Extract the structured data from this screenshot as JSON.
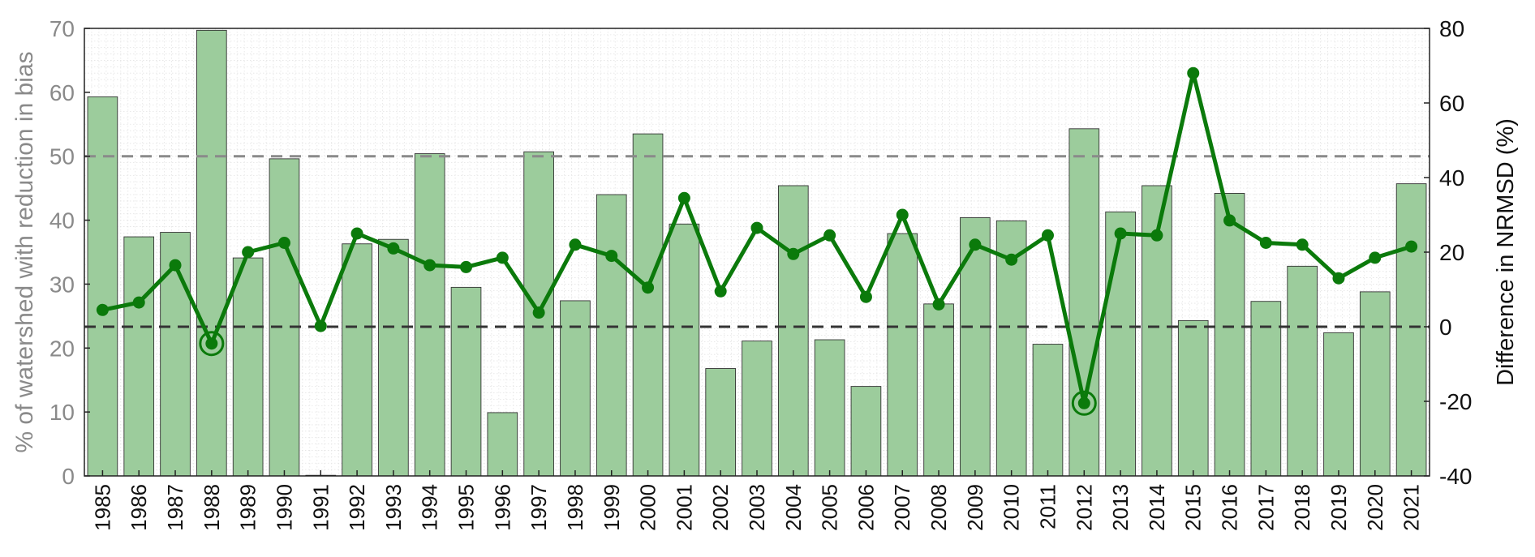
{
  "chart_data": {
    "type": "bar",
    "categories": [
      "1985",
      "1986",
      "1987",
      "1988",
      "1989",
      "1990",
      "1991",
      "1992",
      "1993",
      "1994",
      "1995",
      "1996",
      "1997",
      "1998",
      "1999",
      "2000",
      "2001",
      "2002",
      "2003",
      "2004",
      "2005",
      "2006",
      "2007",
      "2008",
      "2009",
      "2010",
      "2011",
      "2012",
      "2013",
      "2014",
      "2015",
      "2016",
      "2017",
      "2018",
      "2019",
      "2020",
      "2021"
    ],
    "series": [
      {
        "type": "bar",
        "axis": "left",
        "color": "#9ccc9c",
        "values": [
          59.3,
          37.4,
          38.1,
          69.7,
          34.1,
          49.6,
          0.1,
          36.3,
          37.0,
          50.4,
          29.5,
          9.9,
          50.7,
          27.4,
          44.0,
          53.5,
          39.4,
          16.8,
          21.1,
          45.4,
          21.3,
          14.0,
          37.9,
          26.9,
          40.4,
          39.9,
          20.6,
          54.3,
          41.3,
          45.4,
          24.3,
          44.2,
          27.3,
          32.8,
          22.4,
          28.8,
          45.7
        ]
      },
      {
        "type": "line",
        "axis": "right",
        "color": "#0b7a0b",
        "values": [
          4.5,
          6.5,
          16.5,
          -4.5,
          20.0,
          22.5,
          0.2,
          25.0,
          21.0,
          16.5,
          16.0,
          18.5,
          3.8,
          22.0,
          19.0,
          10.5,
          34.5,
          9.5,
          26.5,
          19.5,
          24.5,
          8.0,
          30.0,
          6.0,
          22.0,
          18.0,
          24.5,
          -20.5,
          25.0,
          24.5,
          68.0,
          28.5,
          22.5,
          22.0,
          13.0,
          18.5,
          21.5
        ],
        "highlighted": [
          "1988",
          "2012"
        ]
      }
    ],
    "title": "",
    "xlabel": "",
    "ylabel_left": "% of watershed with reduction in bias",
    "ylabel_right": "Difference in NRMSD (%)",
    "ylim_left": [
      0,
      70
    ],
    "ylim_right": [
      -40,
      80
    ],
    "yticks_left": [
      "0",
      "10",
      "20",
      "30",
      "40",
      "50",
      "60",
      "70"
    ],
    "yticks_right": [
      "-40",
      "-20",
      "0",
      "20",
      "40",
      "60",
      "80"
    ],
    "reference_lines": [
      {
        "axis": "left",
        "value": 50,
        "color": "#8a8a8a",
        "style": "dashed"
      },
      {
        "axis": "right",
        "value": 0,
        "color": "#333333",
        "style": "dashed"
      }
    ],
    "grid": "minor dotted",
    "legend": "none"
  }
}
